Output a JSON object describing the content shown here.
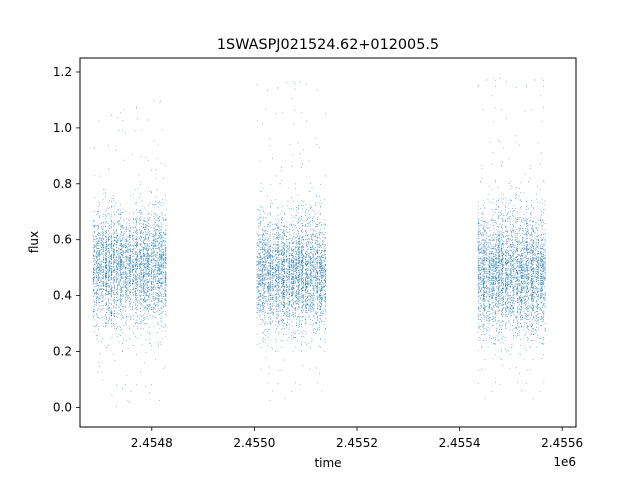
{
  "chart_data": {
    "type": "scatter",
    "title": "1SWASPJ021524.62+012005.5",
    "xlabel": "time",
    "ylabel": "flux",
    "x_offset_label": "1e6",
    "xlim": [
      2454660,
      2455627
    ],
    "ylim": [
      -0.07,
      1.25
    ],
    "grid": false,
    "marker_color": "#1f77b4",
    "xticks": [
      2454800,
      2455000,
      2455200,
      2455400,
      2455600
    ],
    "xtick_labels": [
      "2.4548",
      "2.4550",
      "2.4552",
      "2.4554",
      "2.4556"
    ],
    "yticks": [
      0.0,
      0.2,
      0.4,
      0.6,
      0.8,
      1.0,
      1.2
    ],
    "ytick_labels": [
      "0.0",
      "0.2",
      "0.4",
      "0.6",
      "0.8",
      "1.0",
      "1.2"
    ],
    "series": [
      {
        "segments": [
          {
            "x_range": [
              2454685,
              2454830
            ],
            "flux_center": 0.5,
            "flux_spread": 0.1,
            "flux_range": [
              0.0,
              1.1
            ]
          },
          {
            "x_range": [
              2455005,
              2455140
            ],
            "flux_center": 0.48,
            "flux_spread": 0.1,
            "flux_range": [
              0.0,
              1.17
            ]
          },
          {
            "x_range": [
              2455435,
              2455568
            ],
            "flux_center": 0.48,
            "flux_spread": 0.11,
            "flux_range": [
              0.0,
              1.18
            ]
          }
        ]
      }
    ]
  }
}
